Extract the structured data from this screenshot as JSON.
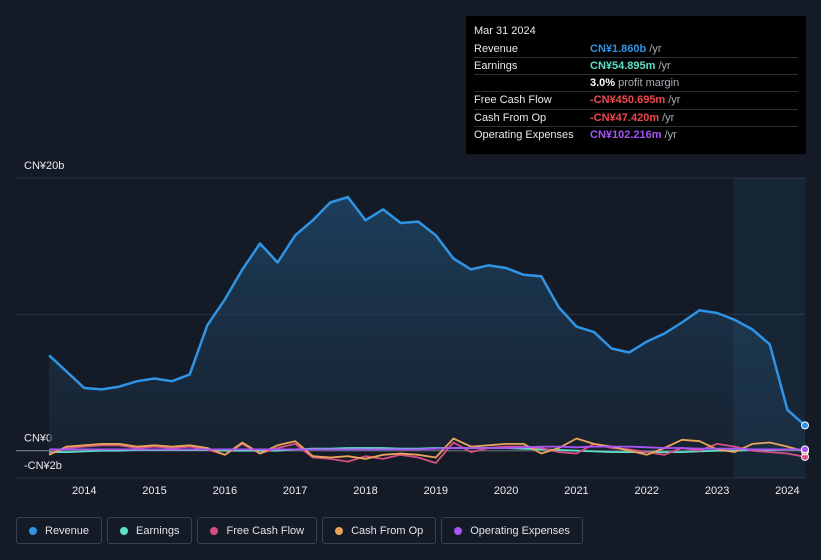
{
  "chart_data": {
    "type": "line",
    "x": [
      2013.5,
      2013.75,
      2014,
      2014.25,
      2014.5,
      2014.75,
      2015,
      2015.25,
      2015.5,
      2015.75,
      2016,
      2016.25,
      2016.5,
      2016.75,
      2017,
      2017.25,
      2017.5,
      2017.75,
      2018,
      2018.25,
      2018.5,
      2018.75,
      2019,
      2019.25,
      2019.5,
      2019.75,
      2020,
      2020.25,
      2020.5,
      2020.75,
      2021,
      2021.25,
      2021.5,
      2021.75,
      2022,
      2022.25,
      2022.5,
      2022.75,
      2023,
      2023.25,
      2023.5,
      2023.75,
      2024,
      2024.25
    ],
    "xlim": [
      2013.03,
      2024.25
    ],
    "xticks": [
      2014,
      2015,
      2016,
      2017,
      2018,
      2019,
      2020,
      2021,
      2022,
      2023,
      2024
    ],
    "ylim": [
      -2,
      20
    ],
    "yticks": [
      {
        "value": 20,
        "label": "CN¥20b"
      },
      {
        "value": 10,
        "label": null
      },
      {
        "value": 0,
        "label": "CN¥0"
      },
      {
        "value": -2,
        "label": "-CN¥2b"
      }
    ],
    "grid": true,
    "series": [
      {
        "name": "Revenue",
        "color": "#2f94e5",
        "values": [
          7.0,
          5.8,
          4.6,
          4.5,
          4.7,
          5.1,
          5.3,
          5.1,
          5.6,
          9.2,
          11.1,
          13.3,
          15.2,
          13.8,
          15.8,
          16.9,
          18.2,
          18.6,
          16.9,
          17.7,
          16.7,
          16.8,
          15.8,
          14.1,
          13.3,
          13.6,
          13.4,
          12.9,
          12.8,
          10.5,
          9.1,
          8.7,
          7.5,
          7.2,
          8.0,
          8.6,
          9.4,
          10.3,
          10.1,
          9.6,
          8.9,
          7.8,
          3.0,
          1.86
        ]
      },
      {
        "name": "Earnings",
        "color": "#5ee0c7",
        "values": [
          -0.1,
          -0.1,
          -0.05,
          0,
          0,
          0.05,
          0.05,
          0.05,
          0.05,
          0.05,
          0,
          0,
          0,
          0,
          0.1,
          0.15,
          0.15,
          0.2,
          0.2,
          0.2,
          0.15,
          0.15,
          0.2,
          0.2,
          0.2,
          0.2,
          0.2,
          0.15,
          0.1,
          0.05,
          0,
          -0.05,
          -0.1,
          -0.1,
          -0.1,
          -0.1,
          -0.1,
          -0.05,
          0,
          0,
          0.05,
          0.05,
          0.1,
          0.055
        ]
      },
      {
        "name": "Free Cash Flow",
        "color": "#d64f84",
        "values": [
          -0.2,
          0.2,
          0.3,
          0.4,
          0.4,
          0.2,
          0.3,
          0.2,
          0.3,
          0.1,
          -0.3,
          0.5,
          -0.2,
          0.2,
          0.5,
          -0.5,
          -0.6,
          -0.8,
          -0.4,
          -0.6,
          -0.3,
          -0.5,
          -0.9,
          0.6,
          -0.1,
          0.2,
          0.3,
          0.3,
          0.2,
          -0.1,
          -0.2,
          0.5,
          0.2,
          0.1,
          -0.1,
          -0.3,
          0.2,
          0,
          0.5,
          0.3,
          0,
          -0.1,
          -0.2,
          -0.451
        ]
      },
      {
        "name": "Cash From Op",
        "color": "#e7a55a",
        "values": [
          -0.3,
          0.3,
          0.4,
          0.5,
          0.5,
          0.3,
          0.4,
          0.3,
          0.4,
          0.2,
          -0.3,
          0.6,
          -0.2,
          0.4,
          0.7,
          -0.4,
          -0.5,
          -0.4,
          -0.6,
          -0.3,
          -0.2,
          -0.3,
          -0.5,
          0.9,
          0.3,
          0.4,
          0.5,
          0.5,
          -0.2,
          0.2,
          0.9,
          0.5,
          0.3,
          0,
          -0.3,
          0.2,
          0.8,
          0.7,
          0.1,
          -0.1,
          0.5,
          0.6,
          0.3,
          -0.047
        ]
      },
      {
        "name": "Operating Expenses",
        "color": "#a855f7",
        "values": [
          0.1,
          0.1,
          0.1,
          0.1,
          0.1,
          0.1,
          0.1,
          0.1,
          0.1,
          0.1,
          0.1,
          0.1,
          0.1,
          0.1,
          0.1,
          0.1,
          0.1,
          0.1,
          0.1,
          0.1,
          0.1,
          0.1,
          0.15,
          0.2,
          0.2,
          0.2,
          0.2,
          0.25,
          0.3,
          0.3,
          0.25,
          0.3,
          0.3,
          0.3,
          0.25,
          0.2,
          0.2,
          0.15,
          0.15,
          0.15,
          0.1,
          0.1,
          0.1,
          0.102
        ]
      }
    ],
    "tooltip": {
      "date": "Mar 31 2024",
      "rows": [
        {
          "label": "Revenue",
          "value": "CN¥1.860b",
          "unit": "/yr",
          "color": "#2f94e5"
        },
        {
          "label": "Earnings",
          "value": "CN¥54.895m",
          "unit": "/yr",
          "color": "#5ee0c7"
        },
        {
          "label": null,
          "value": "3.0%",
          "unit": "profit margin",
          "color": "#ffffff"
        },
        {
          "label": "Free Cash Flow",
          "value": "-CN¥450.695m",
          "unit": "/yr",
          "color": "#f0474f"
        },
        {
          "label": "Cash From Op",
          "value": "-CN¥47.420m",
          "unit": "/yr",
          "color": "#f0474f"
        },
        {
          "label": "Operating Expenses",
          "value": "CN¥102.216m",
          "unit": "/yr",
          "color": "#a855f7"
        }
      ]
    }
  }
}
